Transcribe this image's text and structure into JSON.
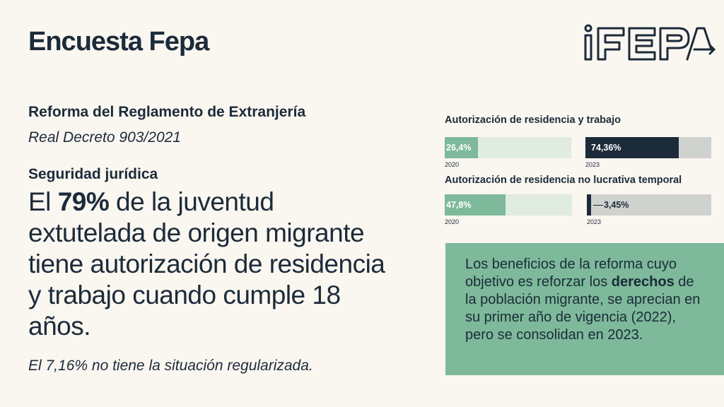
{
  "header": {
    "title": "Encuesta Fepa"
  },
  "logo": {
    "text": "iFEPA",
    "icon": "fepa-logo-icon"
  },
  "colors": {
    "background": "#faf6f0",
    "navy": "#1c2b3a",
    "green": "#7db99a",
    "light_green_track": "#e0ebe1",
    "gray_track": "#d0d2d0"
  },
  "left": {
    "subtitle": "Reforma del Reglamento de Extranjería",
    "decree": "Real Decreto 903/2021",
    "section": "Seguridad jurídica",
    "headline_pre": "El ",
    "headline_pct": "79%",
    "headline_post": " de la juventud extutelada de origen migrante tiene autorización de residencia y trabajo cuando cumple 18 años.",
    "note": "El  7,16% no tiene la situación regularizada."
  },
  "box": {
    "text_pre": "Los beneficios de la reforma cuyo objetivo es reforzar los ",
    "text_bold": "derechos",
    "text_post": " de la población migrante, se aprecian en su primer año de vigencia (2022), pero se consolidan en 2023."
  },
  "chart_data": [
    {
      "type": "bar",
      "title": "Autorización de residencia y trabajo",
      "categories": [
        "2020",
        "2023"
      ],
      "values": [
        26.4,
        74.36
      ],
      "value_labels": [
        "26,4%",
        "74,36%"
      ],
      "ylim": [
        0,
        100
      ]
    },
    {
      "type": "bar",
      "title": "Autorización de residencia no lucrativa temporal",
      "categories": [
        "2020",
        "2023"
      ],
      "values": [
        47.8,
        3.45
      ],
      "value_labels": [
        "47,8%",
        "3,45%"
      ],
      "ylim": [
        0,
        100
      ]
    }
  ]
}
